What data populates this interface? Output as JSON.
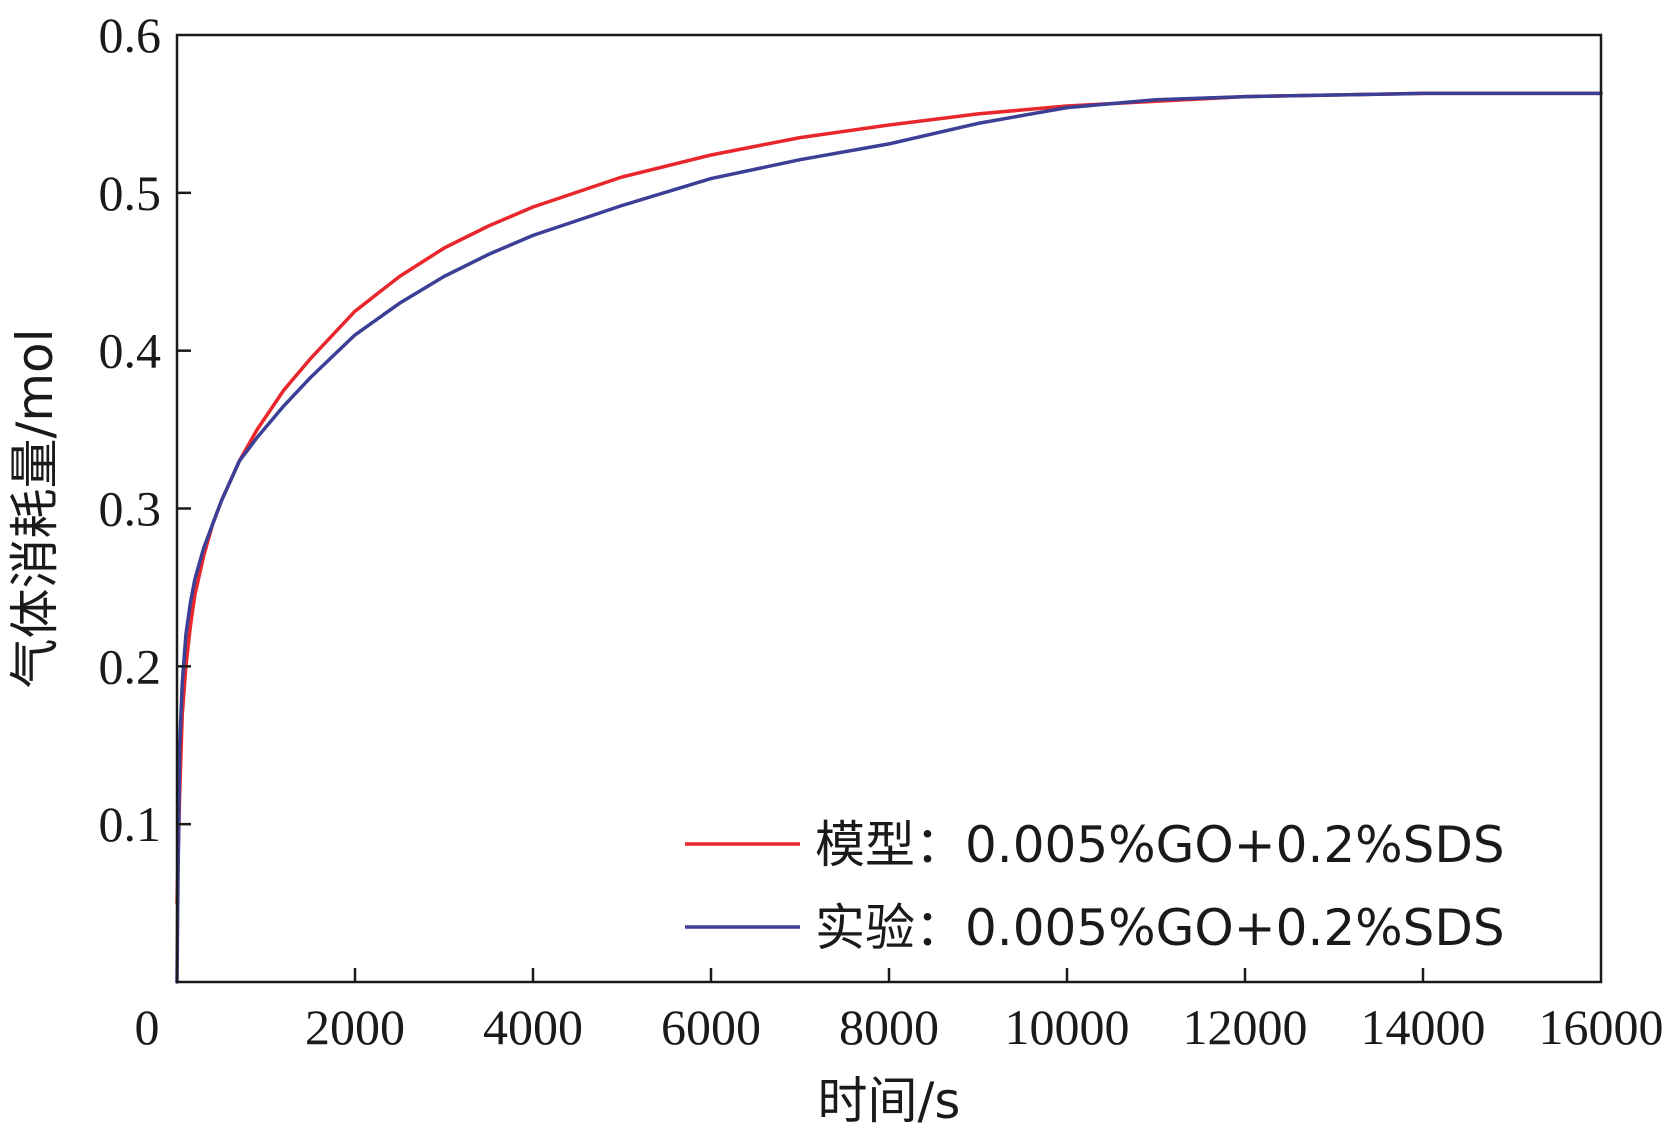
{
  "chart_data": {
    "type": "line",
    "xlabel": "时间/s",
    "ylabel": "气体消耗量/mol",
    "xlim": [
      0,
      16000
    ],
    "ylim": [
      0,
      0.6
    ],
    "x_ticks": [
      0,
      2000,
      4000,
      6000,
      8000,
      10000,
      12000,
      14000,
      16000
    ],
    "x_tick_labels": [
      "0",
      "2000",
      "4000",
      "6000",
      "8000",
      "10000",
      "12000",
      "14000",
      "16000"
    ],
    "y_ticks": [
      0.1,
      0.2,
      0.3,
      0.4,
      0.5,
      0.6
    ],
    "y_tick_labels": [
      "0.1",
      "0.2",
      "0.3",
      "0.4",
      "0.5",
      "0.6"
    ],
    "grid": false,
    "legend_position": "bottom-right",
    "series": [
      {
        "name": "模型：0.005%GO+0.2%SDS",
        "color": "#e8262b",
        "x": [
          0,
          30,
          60,
          100,
          150,
          200,
          300,
          400,
          500,
          700,
          900,
          1200,
          1500,
          2000,
          2500,
          3000,
          3500,
          4000,
          5000,
          6000,
          7000,
          8000,
          9000,
          10000,
          11000,
          12000,
          13000,
          14000,
          15000,
          16000
        ],
        "y": [
          0.05,
          0.12,
          0.17,
          0.2,
          0.225,
          0.245,
          0.27,
          0.29,
          0.305,
          0.33,
          0.35,
          0.375,
          0.395,
          0.425,
          0.447,
          0.465,
          0.479,
          0.491,
          0.51,
          0.524,
          0.535,
          0.543,
          0.55,
          0.555,
          0.558,
          0.561,
          0.562,
          0.563,
          0.563,
          0.563
        ]
      },
      {
        "name": "实验：0.005%GO+0.2%SDS",
        "color": "#3b3f96",
        "x": [
          0,
          10,
          30,
          60,
          100,
          150,
          200,
          300,
          400,
          500,
          700,
          900,
          1200,
          1500,
          2000,
          2500,
          3000,
          3500,
          4000,
          5000,
          6000,
          7000,
          8000,
          9000,
          10000,
          11000,
          12000,
          13000,
          14000,
          15000,
          16000
        ],
        "y": [
          0,
          0.06,
          0.15,
          0.19,
          0.22,
          0.24,
          0.255,
          0.275,
          0.29,
          0.305,
          0.33,
          0.345,
          0.365,
          0.383,
          0.41,
          0.43,
          0.447,
          0.461,
          0.473,
          0.492,
          0.509,
          0.521,
          0.531,
          0.544,
          0.554,
          0.559,
          0.561,
          0.562,
          0.563,
          0.563,
          0.563
        ]
      }
    ]
  }
}
